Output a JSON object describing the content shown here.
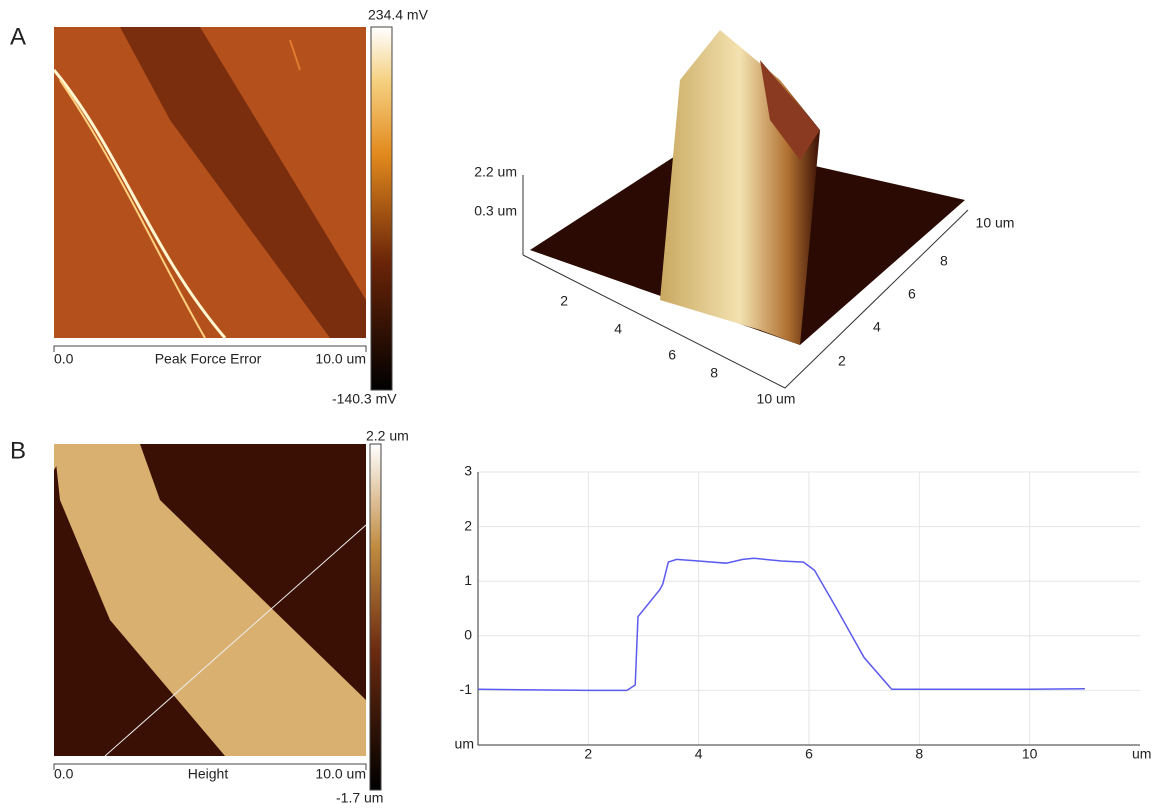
{
  "panel_a": {
    "label": "A",
    "image_axis": {
      "start": "0.0",
      "title": "Peak Force Error",
      "end": "10.0 um"
    },
    "colorbar": {
      "max": "234.4 mV",
      "min": "-140.3 mV"
    },
    "surface_3d": {
      "z_labels": [
        "2.2 um",
        "0.3 um"
      ],
      "x_ticks": [
        "2",
        "4",
        "6",
        "8",
        "10 um"
      ],
      "y_ticks": [
        "2",
        "4",
        "6",
        "8",
        "10 um"
      ]
    }
  },
  "panel_b": {
    "label": "B",
    "image_axis": {
      "start": "0.0",
      "title": "Height",
      "end": "10.0 um"
    },
    "colorbar": {
      "max": "2.2 um",
      "min": "-1.7 um"
    }
  },
  "chart_data": {
    "type": "line",
    "x_label": "um",
    "y_label": "um",
    "xlim": [
      0,
      12
    ],
    "ylim": [
      -2,
      3
    ],
    "xticks": [
      2,
      4,
      6,
      8,
      10
    ],
    "yticks": [
      -1,
      0,
      1,
      2,
      3
    ],
    "grid": true,
    "series": [
      {
        "color": "#5b5bf0",
        "x": [
          0,
          1,
          2,
          2.7,
          2.85,
          2.9,
          3.3,
          3.35,
          3.45,
          3.6,
          4,
          4.5,
          4.8,
          5,
          5.5,
          5.9,
          6.1,
          6.5,
          7,
          7.5,
          8,
          9,
          10,
          11
        ],
        "values": [
          -0.98,
          -0.99,
          -1.0,
          -1.0,
          -0.9,
          0.35,
          0.85,
          0.95,
          1.35,
          1.4,
          1.37,
          1.33,
          1.4,
          1.42,
          1.37,
          1.35,
          1.2,
          0.5,
          -0.4,
          -0.98,
          -0.98,
          -0.98,
          -0.98,
          -0.97
        ]
      }
    ]
  }
}
